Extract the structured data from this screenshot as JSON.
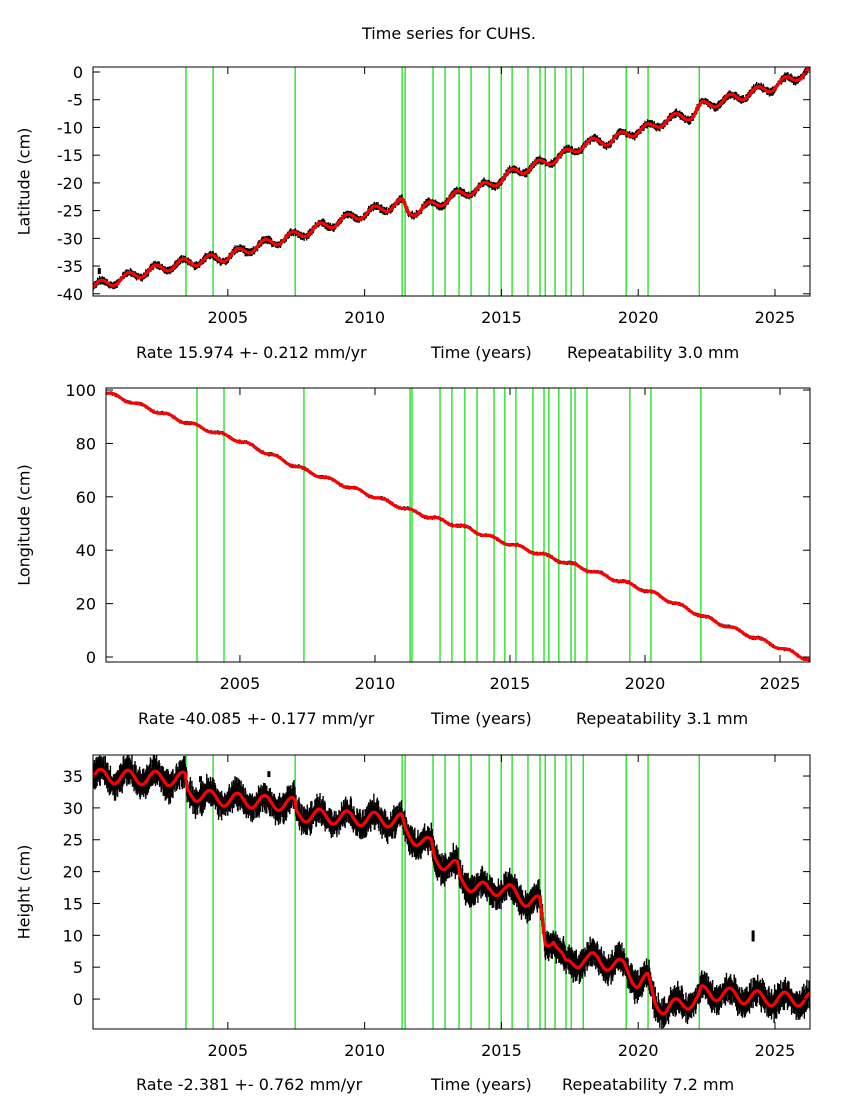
{
  "title": "Time series for CUHS.",
  "colors": {
    "data": "#000000",
    "model": "#ff0000",
    "event_line": "#00e000",
    "frame": "#000000"
  },
  "chart_data": [
    {
      "type": "scatter",
      "ylabel": "Latitude (cm)",
      "xlabel": "Time (years)",
      "rate_text": "Rate 15.974 +- 0.212 mm/yr",
      "repeatability_text": "Repeatability 3.0 mm",
      "xlim": [
        2000.07,
        2026.28
      ],
      "ylim": [
        -40.4,
        0.9
      ],
      "xticks": [
        2005,
        2010,
        2015,
        2020,
        2025
      ],
      "yticks": [
        0,
        -5,
        -10,
        -15,
        -20,
        -25,
        -30,
        -35,
        -40
      ],
      "seasonal_amplitude": 0.8,
      "noise": 0.5,
      "event_years": [
        2003.47,
        2004.46,
        2007.46,
        2011.37,
        2011.48,
        2012.5,
        2012.94,
        2013.45,
        2013.89,
        2014.55,
        2014.99,
        2015.39,
        2015.97,
        2016.41,
        2016.6,
        2016.96,
        2017.36,
        2017.55,
        2017.99,
        2019.56,
        2020.36,
        2022.23
      ],
      "model_knots": [
        [
          2000.1,
          -38.7
        ],
        [
          2001,
          -37.5
        ],
        [
          2002,
          -36
        ],
        [
          2003.45,
          -34.4
        ],
        [
          2005,
          -33.3
        ],
        [
          2006,
          -31.5
        ],
        [
          2007.45,
          -29.5
        ],
        [
          2009,
          -27
        ],
        [
          2010,
          -25.5
        ],
        [
          2011.35,
          -23.6
        ],
        [
          2011.6,
          -25.4
        ],
        [
          2012.5,
          -24
        ],
        [
          2013.5,
          -22
        ],
        [
          2014.5,
          -20.5
        ],
        [
          2015.5,
          -18
        ],
        [
          2016.5,
          -16.5
        ],
        [
          2017.5,
          -14.5
        ],
        [
          2018,
          -13
        ],
        [
          2019,
          -12.3
        ],
        [
          2020,
          -10.5
        ],
        [
          2020.5,
          -10
        ],
        [
          2021,
          -8.6
        ],
        [
          2022,
          -7.7
        ],
        [
          2022.3,
          -6.2
        ],
        [
          2024,
          -4
        ],
        [
          2025,
          -2.5
        ],
        [
          2026.25,
          0.2
        ]
      ],
      "outliers": [
        [
          2000.3,
          -35.9
        ]
      ]
    },
    {
      "type": "scatter",
      "ylabel": "Longitude (cm)",
      "xlabel": "Time (years)",
      "rate_text": "Rate -40.085 +- 0.177 mm/yr",
      "repeatability_text": "Repeatability 3.1 mm",
      "xlim": [
        2000.04,
        2026.11
      ],
      "ylim": [
        -1.87,
        100.75
      ],
      "xticks": [
        2005,
        2010,
        2015,
        2020,
        2025
      ],
      "yticks": [
        0,
        20,
        40,
        60,
        80,
        100
      ],
      "seasonal_amplitude": 0.6,
      "noise": 0.5,
      "event_years": [
        2003.41,
        2004.41,
        2007.37,
        2011.3,
        2011.37,
        2012.41,
        2012.85,
        2013.33,
        2013.78,
        2014.41,
        2014.81,
        2015.22,
        2015.85,
        2016.26,
        2016.44,
        2016.81,
        2017.26,
        2017.41,
        2017.85,
        2019.44,
        2020.22,
        2022.07
      ],
      "model_knots": [
        [
          2000.05,
          99
        ],
        [
          2003.4,
          86.5
        ],
        [
          2005,
          81
        ],
        [
          2007.4,
          70
        ],
        [
          2010,
          60
        ],
        [
          2011.4,
          54.5
        ],
        [
          2012.5,
          51
        ],
        [
          2013.5,
          48
        ],
        [
          2014.5,
          44
        ],
        [
          2016,
          39
        ],
        [
          2017.5,
          34
        ],
        [
          2019.5,
          27
        ],
        [
          2020.4,
          23.5
        ],
        [
          2022.2,
          15
        ],
        [
          2026.1,
          -1
        ]
      ],
      "outliers": []
    },
    {
      "type": "scatter",
      "ylabel": "Height (cm)",
      "xlabel": "Time (years)",
      "rate_text": "Rate -2.381 +- 0.762 mm/yr",
      "repeatability_text": "Repeatability 7.2 mm",
      "xlim": [
        2000.07,
        2026.28
      ],
      "ylim": [
        -4.7,
        38.3
      ],
      "xticks": [
        2005,
        2010,
        2015,
        2020,
        2025
      ],
      "yticks": [
        0,
        5,
        10,
        15,
        20,
        25,
        30,
        35
      ],
      "seasonal_amplitude": 1.1,
      "noise": 1.6,
      "event_years": [
        2003.47,
        2004.46,
        2007.46,
        2011.37,
        2011.48,
        2012.5,
        2012.94,
        2013.45,
        2013.89,
        2014.55,
        2014.99,
        2015.39,
        2015.97,
        2016.41,
        2016.6,
        2016.96,
        2017.36,
        2017.55,
        2017.99,
        2019.56,
        2020.36,
        2022.23
      ],
      "model_knots": [
        [
          2000.1,
          35
        ],
        [
          2003.45,
          34.5
        ],
        [
          2003.5,
          32.5
        ],
        [
          2004.5,
          31.5
        ],
        [
          2007.45,
          30.5
        ],
        [
          2007.5,
          29
        ],
        [
          2009,
          28.5
        ],
        [
          2011.35,
          28
        ],
        [
          2011.5,
          26
        ],
        [
          2012.45,
          24
        ],
        [
          2012.55,
          22
        ],
        [
          2013.4,
          20.5
        ],
        [
          2013.5,
          18.5
        ],
        [
          2014.5,
          17
        ],
        [
          2015,
          17.5
        ],
        [
          2015.95,
          15.5
        ],
        [
          2016.4,
          15
        ],
        [
          2016.6,
          8.5
        ],
        [
          2016.9,
          10
        ],
        [
          2017.35,
          5
        ],
        [
          2017.6,
          5.5
        ],
        [
          2018,
          6.5
        ],
        [
          2019.5,
          5
        ],
        [
          2020,
          2.5
        ],
        [
          2020.35,
          3
        ],
        [
          2020.6,
          -0.5
        ],
        [
          2021,
          -1.5
        ],
        [
          2022.2,
          0
        ],
        [
          2022.3,
          1
        ],
        [
          2023,
          0.8
        ],
        [
          2024,
          0.3
        ],
        [
          2025,
          0
        ],
        [
          2026.25,
          0
        ]
      ],
      "outliers": [
        [
          2024.2,
          9.5
        ],
        [
          2024.2,
          10.3
        ],
        [
          2006.5,
          35.3
        ],
        [
          2004.0,
          34.5
        ]
      ]
    }
  ]
}
